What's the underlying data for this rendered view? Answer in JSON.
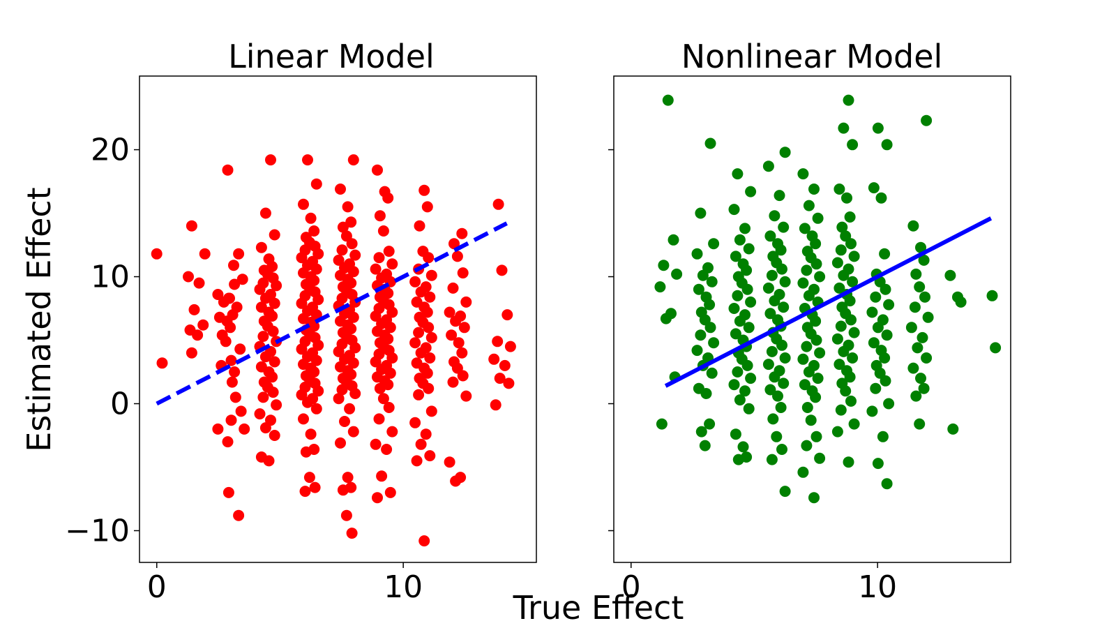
{
  "figure": {
    "xlabel": "True Effect",
    "ylabel": "Estimated Effect"
  },
  "chart_data": [
    {
      "type": "scatter",
      "title": "Linear Model",
      "marker_color": "#ff0000",
      "fit_color": "#0000ff",
      "fit_style": "dashed",
      "xlim": [
        -0.7,
        15.4
      ],
      "ylim": [
        -12.5,
        25.8
      ],
      "xticks": [
        0,
        10
      ],
      "yticks": [
        -10,
        0,
        10,
        20
      ],
      "tick_labels_x": [
        "0",
        "10"
      ],
      "tick_labels_y": [
        "−10",
        "0",
        "10",
        "20"
      ],
      "fit_line": [
        [
          0,
          0
        ],
        [
          14.2,
          14.2
        ]
      ],
      "columns": [
        {
          "x": 0.0,
          "y": [
            11.8,
            3.2
          ]
        },
        {
          "x": 1.2,
          "y": [
            4.0
          ]
        },
        {
          "x": 1.6,
          "y": [
            14.0,
            11.8,
            10.0,
            9.5,
            7.4,
            6.2,
            5.8,
            5.4
          ]
        },
        {
          "x": 2.8,
          "y": [
            9.4,
            8.6,
            8.3,
            8.0,
            7.0,
            6.8,
            6.5,
            6.0,
            5.4,
            4.9,
            3.4,
            3.0,
            2.5,
            -2.0,
            -7.0
          ]
        },
        {
          "x": 3.2,
          "y": [
            18.4,
            11.8,
            10.9,
            9.8,
            8.3,
            7.6,
            4.3,
            1.7,
            0.5,
            -0.6,
            -1.3,
            -2.0,
            -3.0,
            -8.8
          ]
        },
        {
          "x": 4.5,
          "y": [
            19.2,
            15.0,
            13.3,
            12.3,
            11.4,
            10.8,
            10.5,
            10.2,
            9.9,
            9.5,
            9.3,
            9.0,
            8.6,
            8.3,
            7.9,
            7.6,
            7.2,
            6.9,
            6.5,
            6.1,
            5.7,
            5.3,
            4.9,
            4.5,
            4.1,
            3.7,
            3.3,
            2.9,
            2.5,
            2.1,
            1.7,
            1.3,
            0.9,
            0.5,
            -0.1,
            -0.8,
            -1.3,
            -1.9,
            -2.5,
            -4.2,
            -4.5
          ]
        },
        {
          "x": 6.2,
          "y": [
            19.2,
            17.3,
            15.7,
            14.6,
            13.6,
            13.1,
            12.7,
            12.4,
            12.1,
            11.8,
            11.5,
            11.2,
            10.9,
            10.6,
            10.3,
            10.0,
            9.7,
            9.4,
            9.1,
            8.8,
            8.5,
            8.2,
            7.9,
            7.6,
            7.3,
            7.0,
            6.7,
            6.4,
            6.1,
            5.8,
            5.5,
            5.2,
            4.9,
            4.6,
            4.3,
            4.0,
            3.7,
            3.4,
            3.1,
            2.8,
            2.5,
            2.2,
            1.9,
            1.6,
            1.3,
            1.0,
            0.7,
            0.4,
            0.1,
            -0.4,
            -1.2,
            -2.4,
            -3.6,
            -3.8,
            -5.8,
            -6.6,
            -6.9
          ]
        },
        {
          "x": 7.7,
          "y": [
            19.2,
            16.9,
            15.5,
            14.3,
            13.9,
            13.2,
            12.6,
            12.1,
            11.7,
            11.3,
            11.0,
            10.7,
            10.4,
            10.1,
            9.8,
            9.5,
            9.2,
            8.9,
            8.6,
            8.3,
            8.0,
            7.7,
            7.4,
            7.1,
            6.8,
            6.5,
            6.2,
            5.9,
            5.6,
            5.3,
            5.0,
            4.7,
            4.4,
            4.1,
            3.8,
            3.5,
            3.2,
            2.9,
            2.6,
            2.3,
            2.0,
            1.7,
            1.4,
            1.1,
            0.8,
            0.4,
            -0.4,
            -1.4,
            -2.2,
            -3.1,
            -5.8,
            -6.6,
            -6.8,
            -8.8,
            -10.2
          ]
        },
        {
          "x": 9.2,
          "y": [
            18.4,
            16.7,
            16.2,
            14.8,
            13.6,
            12.0,
            11.5,
            11.0,
            10.6,
            10.2,
            9.9,
            9.6,
            9.3,
            9.0,
            8.7,
            8.4,
            8.1,
            7.8,
            7.5,
            7.2,
            6.9,
            6.6,
            6.3,
            6.0,
            5.7,
            5.4,
            5.1,
            4.8,
            4.5,
            4.2,
            3.9,
            3.6,
            3.3,
            3.0,
            2.7,
            2.4,
            2.1,
            1.8,
            1.5,
            1.2,
            0.4,
            -0.3,
            -1.2,
            -2.2,
            -3.2,
            -3.6,
            -5.7,
            -7.0,
            -7.4
          ]
        },
        {
          "x": 10.8,
          "y": [
            16.8,
            15.5,
            14.0,
            12.0,
            11.5,
            10.6,
            10.1,
            9.6,
            9.2,
            8.8,
            8.4,
            8.0,
            7.6,
            7.2,
            6.8,
            6.4,
            6.0,
            5.6,
            5.2,
            4.8,
            4.4,
            4.0,
            3.6,
            3.2,
            2.8,
            2.4,
            2.0,
            1.6,
            1.2,
            0.7,
            -0.6,
            -1.5,
            -2.4,
            -3.2,
            -4.1,
            -4.5,
            -10.8
          ]
        },
        {
          "x": 12.2,
          "y": [
            13.4,
            12.6,
            11.6,
            10.3,
            9.1,
            8.0,
            7.2,
            6.9,
            6.5,
            6.0,
            5.4,
            4.8,
            4.0,
            3.3,
            2.8,
            2.2,
            1.7,
            0.6,
            -4.6,
            -5.8,
            -6.1
          ]
        },
        {
          "x": 14.0,
          "y": [
            15.7,
            10.5,
            7.0,
            4.9,
            4.5,
            3.5,
            3.0,
            2.0,
            1.6,
            -0.1
          ]
        }
      ]
    },
    {
      "type": "scatter",
      "title": "Nonlinear Model",
      "marker_color": "#008000",
      "fit_color": "#0000ff",
      "fit_style": "solid",
      "xlim": [
        -0.7,
        15.4
      ],
      "ylim": [
        -12.5,
        25.8
      ],
      "xticks": [
        0,
        10
      ],
      "yticks": [
        -10,
        0,
        10,
        20
      ],
      "tick_labels_x": [
        "0",
        "10"
      ],
      "tick_labels_y": [],
      "fit_line": [
        [
          1.4,
          1.4
        ],
        [
          14.6,
          14.6
        ]
      ],
      "columns": [
        {
          "x": 1.5,
          "y": [
            23.9,
            12.9,
            10.9,
            10.2,
            9.2,
            7.1,
            6.7,
            2.1,
            -1.6
          ]
        },
        {
          "x": 3.0,
          "y": [
            20.5,
            15.0,
            12.6,
            11.8,
            10.7,
            10.1,
            9.6,
            9.0,
            8.4,
            7.8,
            7.2,
            6.6,
            6.0,
            5.4,
            4.8,
            4.2,
            3.6,
            3.0,
            2.4,
            1.2,
            0.8,
            -1.6,
            -2.2,
            -3.3
          ]
        },
        {
          "x": 4.5,
          "y": [
            18.1,
            16.7,
            15.3,
            13.8,
            12.9,
            12.2,
            11.6,
            11.0,
            10.5,
            10.0,
            9.5,
            9.0,
            8.5,
            8.0,
            7.5,
            7.0,
            6.5,
            6.0,
            5.5,
            5.0,
            4.5,
            4.0,
            3.5,
            3.0,
            2.5,
            2.0,
            1.5,
            1.0,
            0.3,
            -0.4,
            -2.4,
            -3.4,
            -4.2,
            -4.4
          ]
        },
        {
          "x": 5.9,
          "y": [
            19.8,
            18.7,
            16.4,
            14.8,
            13.9,
            13.2,
            12.6,
            12.1,
            11.6,
            11.1,
            10.6,
            10.1,
            9.6,
            9.1,
            8.6,
            8.1,
            7.6,
            7.1,
            6.6,
            6.1,
            5.6,
            5.1,
            4.6,
            4.1,
            3.6,
            3.1,
            2.6,
            2.1,
            1.6,
            1.1,
            0.6,
            -0.3,
            -1.2,
            -2.6,
            -3.6,
            -4.4,
            -6.9
          ]
        },
        {
          "x": 7.3,
          "y": [
            18.1,
            16.9,
            15.6,
            14.6,
            13.8,
            13.2,
            12.6,
            12.0,
            11.5,
            11.0,
            10.5,
            10.0,
            9.5,
            9.0,
            8.5,
            8.0,
            7.5,
            7.0,
            6.5,
            6.0,
            5.5,
            5.0,
            4.5,
            4.0,
            3.5,
            3.0,
            2.5,
            2.0,
            1.5,
            1.0,
            0.5,
            -0.3,
            -1.3,
            -2.6,
            -3.3,
            -4.3,
            -5.4,
            -7.4
          ]
        },
        {
          "x": 8.7,
          "y": [
            23.9,
            21.7,
            20.4,
            16.9,
            16.2,
            14.7,
            13.9,
            13.2,
            12.6,
            12.1,
            11.6,
            11.1,
            10.6,
            10.1,
            9.6,
            9.1,
            8.6,
            8.1,
            7.6,
            7.1,
            6.6,
            6.1,
            5.6,
            5.1,
            4.6,
            4.1,
            3.6,
            3.1,
            2.6,
            2.1,
            1.6,
            1.0,
            0.2,
            -0.5,
            -1.6,
            -2.2,
            -4.6
          ]
        },
        {
          "x": 10.1,
          "y": [
            21.7,
            20.4,
            17.0,
            16.2,
            11.8,
            10.2,
            9.6,
            9.0,
            8.4,
            7.8,
            7.2,
            6.6,
            6.0,
            5.4,
            4.8,
            4.2,
            3.6,
            3.0,
            2.4,
            1.8,
            1.2,
            0.0,
            -0.6,
            -2.6,
            -4.7,
            -6.3
          ]
        },
        {
          "x": 11.7,
          "y": [
            22.3,
            14.0,
            12.3,
            11.3,
            10.2,
            9.2,
            8.4,
            7.6,
            6.8,
            6.0,
            5.2,
            4.4,
            3.6,
            2.8,
            2.0,
            1.2,
            0.6,
            -1.6
          ]
        },
        {
          "x": 13.2,
          "y": [
            10.1,
            8.4,
            8.0,
            -2.0
          ]
        },
        {
          "x": 14.6,
          "y": [
            8.5,
            4.4
          ]
        }
      ]
    }
  ]
}
